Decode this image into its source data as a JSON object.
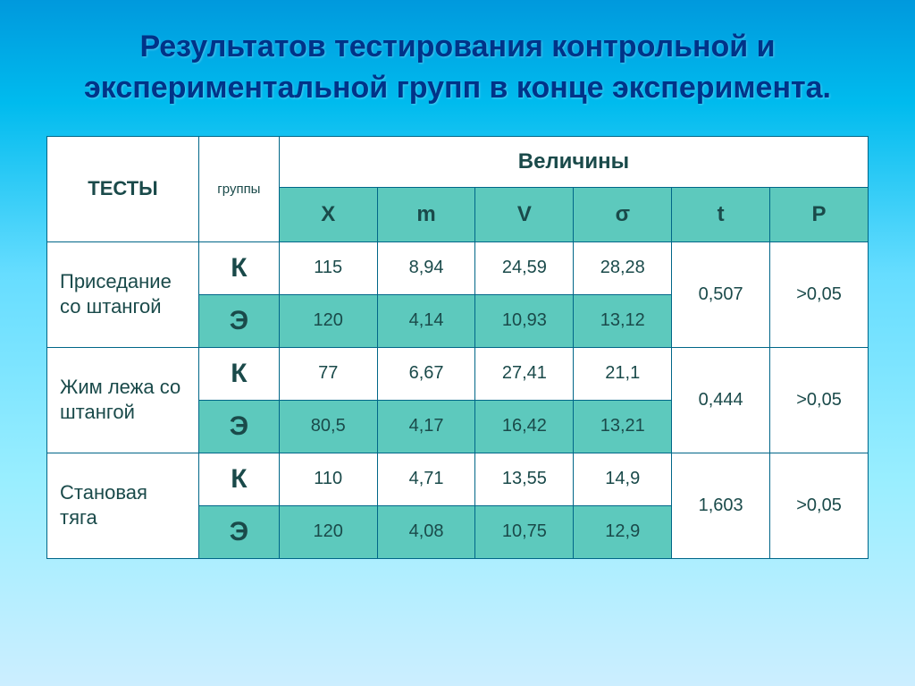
{
  "title": "Результатов тестирования контрольной и экспериментальной групп в конце эксперимента.",
  "table": {
    "headers": {
      "tests": "ТЕСТЫ",
      "groups": "группы",
      "values": "Величины",
      "sub": [
        "X",
        "m",
        "V",
        "σ",
        "t",
        "P"
      ]
    },
    "rows": [
      {
        "test": "Приседание со штангой",
        "k": {
          "label": "К",
          "X": "115",
          "m": "8,94",
          "V": "24,59",
          "sigma": "28,28"
        },
        "e": {
          "label": "Э",
          "X": "120",
          "m": "4,14",
          "V": "10,93",
          "sigma": "13,12"
        },
        "t": "0,507",
        "P": ">0,05"
      },
      {
        "test": "Жим лежа со штангой",
        "k": {
          "label": "К",
          "X": "77",
          "m": "6,67",
          "V": "27,41",
          "sigma": "21,1"
        },
        "e": {
          "label": "Э",
          "X": "80,5",
          "m": "4,17",
          "V": "16,42",
          "sigma": "13,21"
        },
        "t": "0,444",
        "P": ">0,05"
      },
      {
        "test": "Становая тяга",
        "k": {
          "label": "К",
          "X": "110",
          "m": "4,71",
          "V": "13,55",
          "sigma": "14,9"
        },
        "e": {
          "label": "Э",
          "X": "120",
          "m": "4,08",
          "V": "10,75",
          "sigma": "12,9"
        },
        "t": "1,603",
        "P": ">0,05"
      }
    ]
  },
  "colors": {
    "title_color": "#003388",
    "border_color": "#006688",
    "teal_bg": "#5dc9bd",
    "white_bg": "#ffffff",
    "text_color": "#1a4a4a"
  }
}
